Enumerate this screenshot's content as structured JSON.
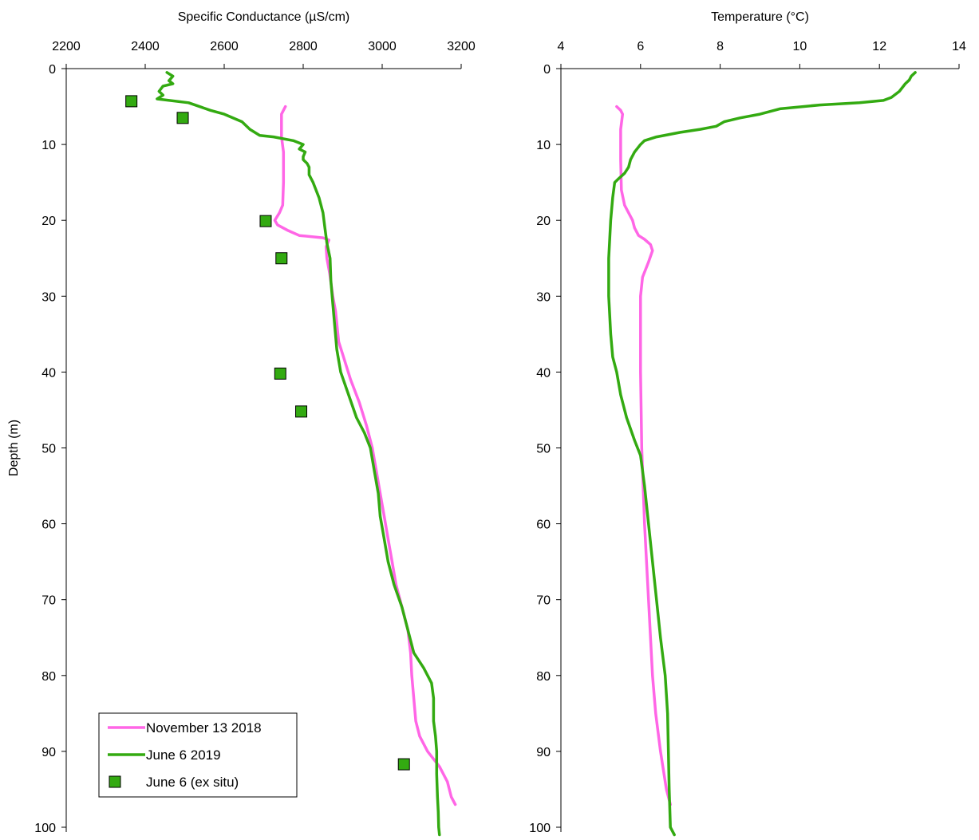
{
  "chart_data": [
    {
      "type": "line",
      "title": "",
      "xlabel": "Specific Conductance (µS/cm)",
      "ylabel": "Depth (m)",
      "xlim": [
        2200,
        3200
      ],
      "ylim": [
        0,
        100
      ],
      "y_inverted": true,
      "x_axis_position": "top",
      "xticks": [
        "2200",
        "2400",
        "2600",
        "2800",
        "3000",
        "3200"
      ],
      "yticks": [
        "0",
        "10",
        "20",
        "30",
        "40",
        "50",
        "60",
        "70",
        "80",
        "90",
        "100"
      ],
      "grid": false,
      "legend": {
        "placement": "bottom-left",
        "entries": [
          "November 13 2018",
          "June 6 2019",
          "June 6 (ex situ)"
        ]
      },
      "series": [
        {
          "name": "November 13 2018",
          "kind": "line",
          "color": "#ff66e6",
          "points": [
            [
              2755,
              5
            ],
            [
              2745,
              6
            ],
            [
              2745,
              9
            ],
            [
              2750,
              11
            ],
            [
              2750,
              15
            ],
            [
              2748,
              18
            ],
            [
              2740,
              19
            ],
            [
              2728,
              20
            ],
            [
              2735,
              20.6
            ],
            [
              2760,
              21.3
            ],
            [
              2790,
              22
            ],
            [
              2850,
              22.3
            ],
            [
              2865,
              22.6
            ],
            [
              2858,
              23.5
            ],
            [
              2860,
              25
            ],
            [
              2867,
              27
            ],
            [
              2875,
              30
            ],
            [
              2882,
              32
            ],
            [
              2890,
              36
            ],
            [
              2902,
              38
            ],
            [
              2920,
              41
            ],
            [
              2942,
              44
            ],
            [
              2960,
              47
            ],
            [
              2975,
              50
            ],
            [
              2985,
              53
            ],
            [
              2995,
              56
            ],
            [
              3005,
              59
            ],
            [
              3015,
              62
            ],
            [
              3025,
              65
            ],
            [
              3035,
              68
            ],
            [
              3050,
              71
            ],
            [
              3065,
              74
            ],
            [
              3072,
              77
            ],
            [
              3075,
              80
            ],
            [
              3080,
              83
            ],
            [
              3085,
              86
            ],
            [
              3095,
              88
            ],
            [
              3115,
              90
            ],
            [
              3145,
              92
            ],
            [
              3165,
              94
            ],
            [
              3175,
              96
            ],
            [
              3185,
              97
            ]
          ]
        },
        {
          "name": "June 6 2019",
          "kind": "line",
          "color": "#33aa11",
          "points": [
            [
              2455,
              0.5
            ],
            [
              2470,
              1
            ],
            [
              2460,
              1.6
            ],
            [
              2470,
              2
            ],
            [
              2445,
              2.3
            ],
            [
              2435,
              3
            ],
            [
              2445,
              3.5
            ],
            [
              2430,
              4
            ],
            [
              2510,
              4.5
            ],
            [
              2565,
              5.5
            ],
            [
              2600,
              6
            ],
            [
              2645,
              7
            ],
            [
              2665,
              8
            ],
            [
              2690,
              8.8
            ],
            [
              2725,
              9
            ],
            [
              2775,
              9.5
            ],
            [
              2800,
              10
            ],
            [
              2790,
              10.6
            ],
            [
              2805,
              11
            ],
            [
              2800,
              11.6
            ],
            [
              2800,
              12
            ],
            [
              2810,
              12.5
            ],
            [
              2815,
              13
            ],
            [
              2815,
              14
            ],
            [
              2825,
              15
            ],
            [
              2840,
              17
            ],
            [
              2850,
              19
            ],
            [
              2855,
              21
            ],
            [
              2860,
              23
            ],
            [
              2868,
              25
            ],
            [
              2870,
              28
            ],
            [
              2875,
              31
            ],
            [
              2880,
              34
            ],
            [
              2885,
              37
            ],
            [
              2895,
              40
            ],
            [
              2915,
              43
            ],
            [
              2935,
              46
            ],
            [
              2955,
              48
            ],
            [
              2970,
              50
            ],
            [
              2980,
              53
            ],
            [
              2990,
              56
            ],
            [
              2995,
              59
            ],
            [
              3005,
              62
            ],
            [
              3015,
              65
            ],
            [
              3030,
              68
            ],
            [
              3050,
              71
            ],
            [
              3065,
              74
            ],
            [
              3080,
              77
            ],
            [
              3105,
              79
            ],
            [
              3125,
              81
            ],
            [
              3130,
              83
            ],
            [
              3130,
              86
            ],
            [
              3135,
              88
            ],
            [
              3138,
              90
            ],
            [
              3138,
              93
            ],
            [
              3140,
              96
            ],
            [
              3142,
              98
            ],
            [
              3143,
              100
            ],
            [
              3145,
              101
            ]
          ]
        },
        {
          "name": "June 6 (ex situ)",
          "kind": "scatter",
          "marker": "square",
          "color": "#33aa11",
          "points": [
            [
              2365,
              4.3
            ],
            [
              2495,
              6.5
            ],
            [
              2705,
              20.1
            ],
            [
              2745,
              25
            ],
            [
              2742,
              40.2
            ],
            [
              2795,
              45.2
            ],
            [
              3055,
              91.7
            ]
          ]
        }
      ]
    },
    {
      "type": "line",
      "title": "",
      "xlabel": "Temperature (°C)",
      "ylabel": "",
      "xlim": [
        4,
        14
      ],
      "ylim": [
        0,
        100
      ],
      "y_inverted": true,
      "x_axis_position": "top",
      "xticks": [
        "4",
        "6",
        "8",
        "10",
        "12",
        "14"
      ],
      "yticks": [
        "0",
        "10",
        "20",
        "30",
        "40",
        "50",
        "60",
        "70",
        "80",
        "90",
        "100"
      ],
      "grid": false,
      "series": [
        {
          "name": "November 13 2018",
          "kind": "line",
          "color": "#ff66e6",
          "points": [
            [
              5.4,
              5
            ],
            [
              5.5,
              5.5
            ],
            [
              5.55,
              6
            ],
            [
              5.5,
              8
            ],
            [
              5.5,
              12
            ],
            [
              5.52,
              16
            ],
            [
              5.6,
              18
            ],
            [
              5.75,
              19.5
            ],
            [
              5.8,
              20
            ],
            [
              5.85,
              21
            ],
            [
              5.95,
              22
            ],
            [
              6.1,
              22.5
            ],
            [
              6.25,
              23.2
            ],
            [
              6.3,
              24
            ],
            [
              6.2,
              25.5
            ],
            [
              6.05,
              27.5
            ],
            [
              6,
              30
            ],
            [
              6,
              40
            ],
            [
              6.03,
              50
            ],
            [
              6.1,
              60
            ],
            [
              6.2,
              70
            ],
            [
              6.3,
              80
            ],
            [
              6.38,
              85
            ],
            [
              6.5,
              90
            ],
            [
              6.65,
              95
            ],
            [
              6.75,
              97
            ]
          ]
        },
        {
          "name": "June 6 2019",
          "kind": "line",
          "color": "#33aa11",
          "points": [
            [
              12.9,
              0.5
            ],
            [
              12.8,
              1
            ],
            [
              12.75,
              1.5
            ],
            [
              12.65,
              2
            ],
            [
              12.5,
              3
            ],
            [
              12.3,
              3.8
            ],
            [
              12.1,
              4.2
            ],
            [
              11.5,
              4.5
            ],
            [
              10.5,
              4.8
            ],
            [
              9.5,
              5.3
            ],
            [
              9,
              6
            ],
            [
              8.5,
              6.5
            ],
            [
              8.1,
              7
            ],
            [
              7.9,
              7.6
            ],
            [
              7.5,
              8
            ],
            [
              7,
              8.4
            ],
            [
              6.4,
              9
            ],
            [
              6.1,
              9.5
            ],
            [
              6,
              10
            ],
            [
              5.85,
              11
            ],
            [
              5.75,
              12
            ],
            [
              5.7,
              13
            ],
            [
              5.6,
              13.8
            ],
            [
              5.45,
              14.5
            ],
            [
              5.35,
              15
            ],
            [
              5.3,
              17
            ],
            [
              5.25,
              20
            ],
            [
              5.2,
              25
            ],
            [
              5.2,
              30
            ],
            [
              5.25,
              35
            ],
            [
              5.3,
              38
            ],
            [
              5.4,
              40
            ],
            [
              5.5,
              43
            ],
            [
              5.65,
              46
            ],
            [
              5.85,
              49
            ],
            [
              6,
              51
            ],
            [
              6.1,
              55
            ],
            [
              6.2,
              60
            ],
            [
              6.3,
              65
            ],
            [
              6.4,
              70
            ],
            [
              6.5,
              75
            ],
            [
              6.62,
              80
            ],
            [
              6.68,
              85
            ],
            [
              6.7,
              90
            ],
            [
              6.72,
              95
            ],
            [
              6.75,
              100
            ],
            [
              6.85,
              101
            ]
          ]
        }
      ]
    }
  ]
}
